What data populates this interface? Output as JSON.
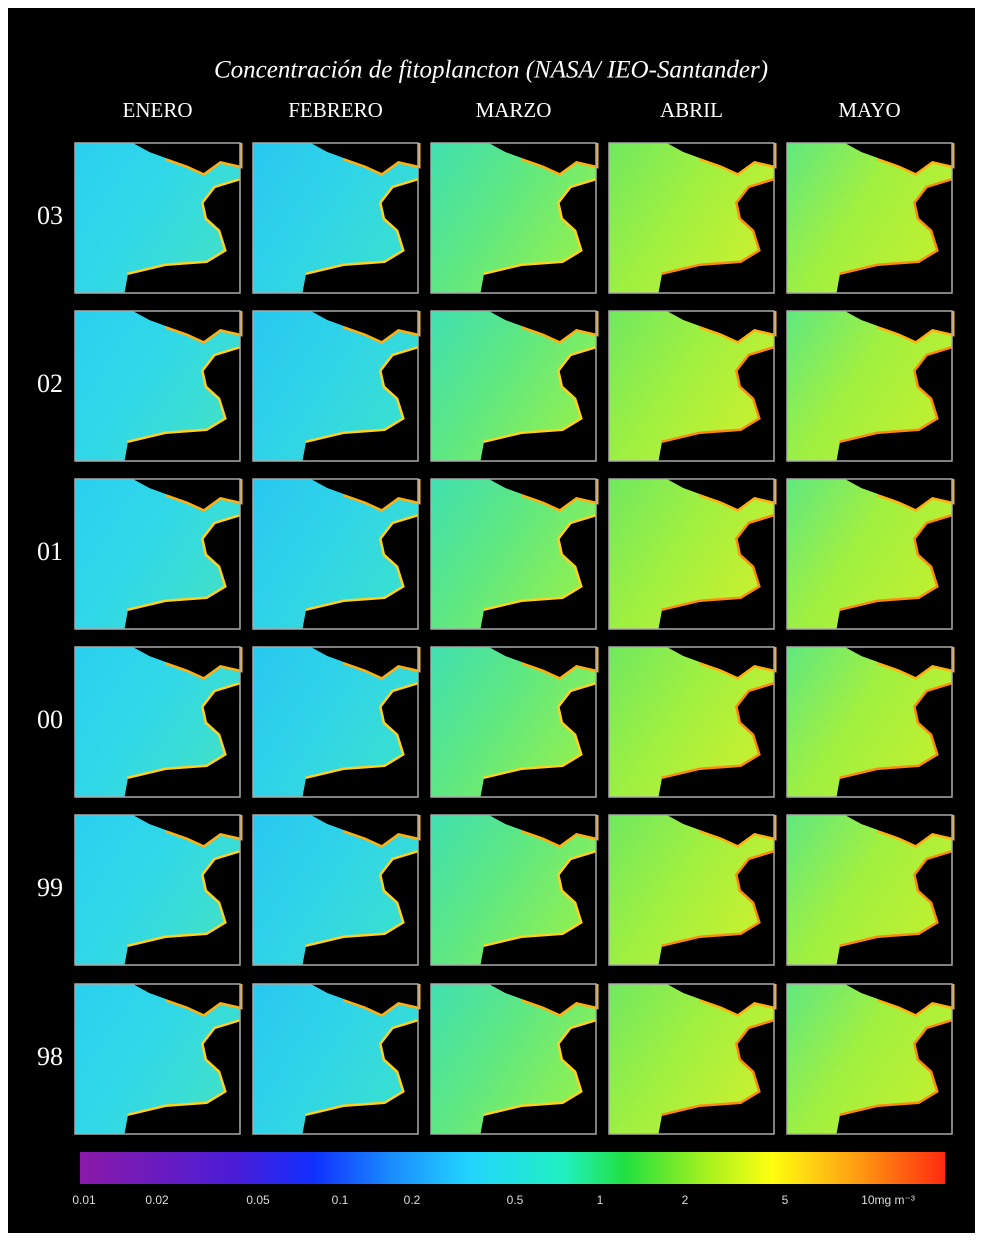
{
  "header": {
    "title": "Concentración de fitoplancton (NASA/ IEO-Santander)"
  },
  "columns": [
    "ENERO",
    "FEBRERO",
    "MARZO",
    "ABRIL",
    "MAYO"
  ],
  "rows": [
    "03",
    "02",
    "01",
    "00",
    "99",
    "98"
  ],
  "colorbar": {
    "labels": [
      "0.01",
      "0.02",
      "0.05",
      "0.1",
      "0.2",
      "0.5",
      "1",
      "2",
      "5",
      "10mg m⁻³"
    ]
  }
}
